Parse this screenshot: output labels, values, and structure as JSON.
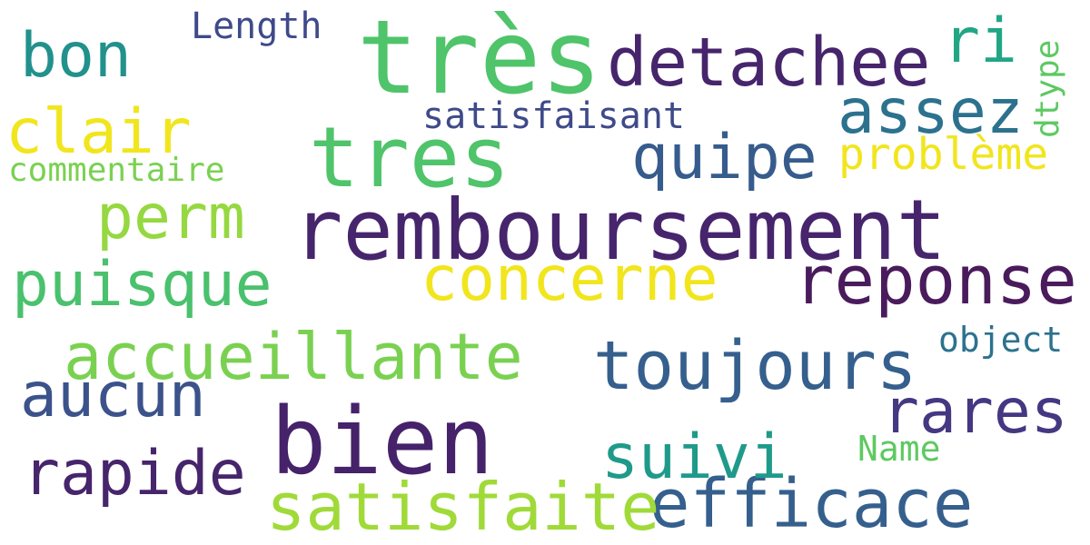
{
  "words": [
    {
      "text": "remboursement",
      "color": "#46256c"
    },
    {
      "text": "très",
      "color": "#4fc46a"
    },
    {
      "text": "bien",
      "color": "#45226a"
    },
    {
      "text": "tres",
      "color": "#4fc46a"
    },
    {
      "text": "detachee",
      "color": "#46256c"
    },
    {
      "text": "reponse",
      "color": "#4a1b5c"
    },
    {
      "text": "concerne",
      "color": "#f1e51d"
    },
    {
      "text": "accueillante",
      "color": "#7ad151"
    },
    {
      "text": "toujours",
      "color": "#355f8d"
    },
    {
      "text": "efficace",
      "color": "#355f8d"
    },
    {
      "text": "satisfaite",
      "color": "#a0da39"
    },
    {
      "text": "quipe",
      "color": "#365c8d"
    },
    {
      "text": "puisque",
      "color": "#4ac16d"
    },
    {
      "text": "rapide",
      "color": "#46256c"
    },
    {
      "text": "aucun",
      "color": "#3b528b"
    },
    {
      "text": "assez",
      "color": "#2c728e"
    },
    {
      "text": "suivi",
      "color": "#1f9a8a"
    },
    {
      "text": "rares",
      "color": "#453781"
    },
    {
      "text": "perm",
      "color": "#95d840"
    },
    {
      "text": "bon",
      "color": "#21918c"
    },
    {
      "text": "clair",
      "color": "#f1e51d"
    },
    {
      "text": "problème",
      "color": "#f1e51d"
    },
    {
      "text": "ri",
      "color": "#21a685"
    },
    {
      "text": "satisfaisant",
      "color": "#3e4a89"
    },
    {
      "text": "commentaire",
      "color": "#7ad151"
    },
    {
      "text": "Length",
      "color": "#3e4a89"
    },
    {
      "text": "object",
      "color": "#2c728e"
    },
    {
      "text": "Name",
      "color": "#5ec962"
    },
    {
      "text": "dtype",
      "color": "#5ec962"
    }
  ]
}
